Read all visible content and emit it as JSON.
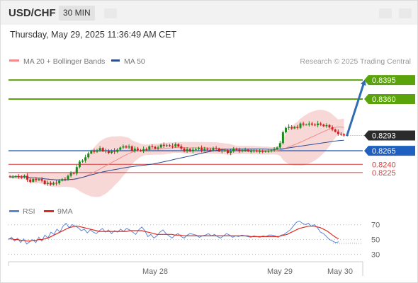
{
  "header": {
    "symbol": "USD/CHF",
    "timeframe": "30 MIN"
  },
  "timestamp": "Thursday, May 29, 2025 11:36:49 AM CET",
  "source": "Research © 2025 Trading Central",
  "colors": {
    "resistance": "#5ba30a",
    "support_main": "#1f5fbf",
    "support_minor": "#d83a3a",
    "candle_up": "#1a8c1a",
    "candle_down": "#d01c1c",
    "ma20": "#f08c8c",
    "band": "#f6c9c9",
    "ma50": "#2d4f8e",
    "arrow": "#2f6db3",
    "rsi": "#5a86d6",
    "rsi_ma": "#e0291f",
    "price_tag": "#2b2b2b"
  },
  "chart_data": [
    {
      "type": "candlestick",
      "title": "USD/CHF",
      "legend": [
        {
          "label": "MA 20 + Bollinger Bands",
          "color": "#f08c8c"
        },
        {
          "label": "MA 50",
          "color": "#2d4f8e"
        }
      ],
      "legend_position": "top-left",
      "x_ticks": [
        "May 28",
        "May 29",
        "May 30"
      ],
      "ylim": [
        0.8178,
        0.8412
      ],
      "current_price": {
        "label": "0.8293",
        "value": 0.8293
      },
      "resistances": [
        {
          "label": "0.8395",
          "value": 0.8395
        },
        {
          "label": "0.8360",
          "value": 0.836
        }
      ],
      "supports": [
        {
          "label": "0.8265",
          "value": 0.8265
        },
        {
          "label": "0.8240",
          "value": 0.824
        },
        {
          "label": "0.8225",
          "value": 0.8225
        }
      ],
      "target_arrow": {
        "from": 0.8292,
        "to": 0.8395
      },
      "ohlc_close": [
        0.8217,
        0.8217,
        0.8218,
        0.8217,
        0.8216,
        0.8219,
        0.8212,
        0.8208,
        0.8213,
        0.8211,
        0.8213,
        0.821,
        0.8204,
        0.8206,
        0.8203,
        0.8206,
        0.8205,
        0.821,
        0.8213,
        0.8212,
        0.8219,
        0.8224,
        0.8223,
        0.8235,
        0.8245,
        0.8247,
        0.8253,
        0.826,
        0.8265,
        0.8263,
        0.8266,
        0.827,
        0.8264,
        0.8265,
        0.8261,
        0.8265,
        0.8263,
        0.8267,
        0.8271,
        0.8273,
        0.8271,
        0.8273,
        0.8265,
        0.8269,
        0.8266,
        0.8265,
        0.8268,
        0.8267,
        0.8273,
        0.8272,
        0.8269,
        0.8271,
        0.8276,
        0.8274,
        0.8275,
        0.8274,
        0.8273,
        0.8277,
        0.8273,
        0.8269,
        0.8264,
        0.8268,
        0.8264,
        0.8267,
        0.8268,
        0.827,
        0.8266,
        0.8269,
        0.8267,
        0.8266,
        0.827,
        0.8269,
        0.8264,
        0.8265,
        0.8266,
        0.8261,
        0.8264,
        0.8269,
        0.8267,
        0.8264,
        0.8266,
        0.8267,
        0.8264,
        0.8264,
        0.8265,
        0.8264,
        0.8264,
        0.8263,
        0.8264,
        0.8264,
        0.8266,
        0.8268,
        0.8271,
        0.8279,
        0.8299,
        0.8307,
        0.8309,
        0.8306,
        0.8309,
        0.8307,
        0.8315,
        0.8313,
        0.8313,
        0.8315,
        0.8313,
        0.8312,
        0.8315,
        0.8313,
        0.831,
        0.8312,
        0.8308,
        0.8304,
        0.83,
        0.8296,
        0.8295,
        0.8293
      ]
    },
    {
      "type": "line",
      "title": "RSI",
      "legend": [
        {
          "label": "RSI",
          "color": "#5a86d6"
        },
        {
          "label": "9MA",
          "color": "#e0291f"
        }
      ],
      "legend_position": "top-left",
      "y_ticks": [
        "70",
        "50",
        "30"
      ],
      "ylim": [
        22,
        82
      ],
      "grid": "dotted",
      "series": [
        {
          "name": "RSI",
          "values": [
            50,
            53,
            48,
            52,
            46,
            51,
            44,
            47,
            50,
            46,
            53,
            48,
            56,
            52,
            60,
            57,
            64,
            60,
            68,
            72,
            66,
            70,
            68,
            66,
            62,
            64,
            59,
            63,
            60,
            58,
            62,
            65,
            60,
            63,
            58,
            62,
            60,
            64,
            61,
            65,
            63,
            60,
            57,
            63,
            67,
            62,
            54,
            57,
            52,
            55,
            60,
            63,
            58,
            55,
            52,
            56,
            58,
            54,
            52,
            56,
            58,
            57,
            56,
            53,
            55,
            56,
            58,
            55,
            57,
            54,
            52,
            55,
            58,
            56,
            53,
            55,
            54,
            56,
            55,
            54,
            53,
            55,
            54,
            53,
            55,
            54,
            56,
            56,
            55,
            53,
            56,
            57,
            60,
            63,
            68,
            73,
            75,
            72,
            70,
            72,
            68,
            70,
            66,
            60,
            58,
            54,
            50,
            48,
            46,
            47
          ]
        },
        {
          "name": "9MA",
          "values": [
            51,
            51,
            50,
            50,
            49,
            49,
            48,
            48,
            49,
            49,
            50,
            50,
            51,
            52,
            54,
            56,
            58,
            60,
            62,
            64,
            66,
            67,
            68,
            68,
            67,
            66,
            65,
            64,
            63,
            62,
            61,
            61,
            61,
            61,
            61,
            61,
            61,
            61,
            61,
            61,
            62,
            62,
            62,
            62,
            62,
            61,
            60,
            59,
            58,
            57,
            57,
            57,
            57,
            57,
            57,
            56,
            56,
            56,
            55,
            55,
            55,
            55,
            55,
            55,
            55,
            55,
            55,
            55,
            55,
            55,
            55,
            55,
            55,
            55,
            55,
            55,
            55,
            55,
            55,
            55,
            54,
            54,
            54,
            54,
            54,
            54,
            54,
            54,
            54,
            54,
            55,
            56,
            57,
            59,
            61,
            63,
            65,
            66,
            67,
            68,
            68,
            68,
            67,
            66,
            64,
            62,
            59,
            56,
            53,
            51
          ]
        }
      ],
      "reference_value": 45
    }
  ]
}
